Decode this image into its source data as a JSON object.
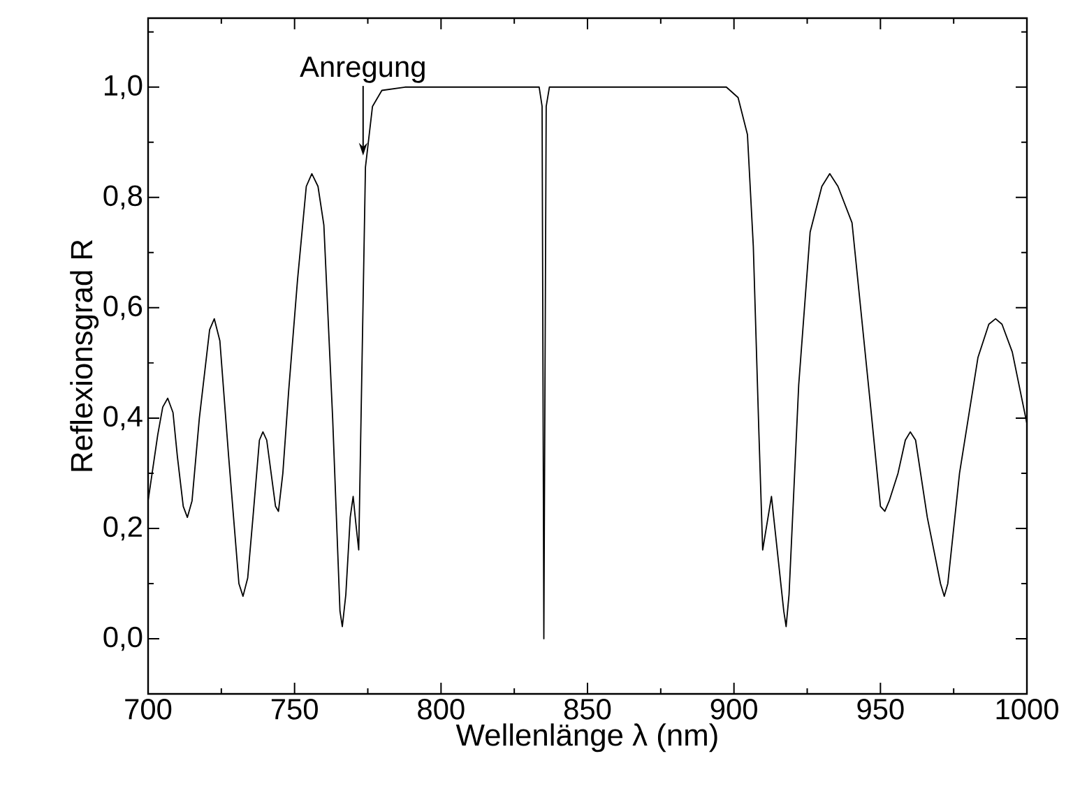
{
  "chart_data": {
    "type": "line",
    "xlabel": "Wellenlänge λ (nm)",
    "ylabel": "Reflexionsgrad R",
    "xlim": [
      700,
      1000
    ],
    "ylim": [
      -0.1,
      1.125
    ],
    "xticks": [
      700,
      {
        "value": 725,
        "label": null
      },
      750,
      {
        "value": 775,
        "label": null
      },
      800,
      {
        "value": 825,
        "label": null
      },
      850,
      {
        "value": 875,
        "label": null
      },
      900,
      {
        "value": 925,
        "label": null
      },
      950,
      {
        "value": 975,
        "label": null
      },
      1000
    ],
    "yticks": [
      {
        "value": -0.1,
        "label": null
      },
      {
        "value": 0.0,
        "label": "0,0"
      },
      {
        "value": 0.1,
        "label": null
      },
      {
        "value": 0.2,
        "label": "0,2"
      },
      {
        "value": 0.3,
        "label": null
      },
      {
        "value": 0.4,
        "label": "0,4"
      },
      {
        "value": 0.5,
        "label": null
      },
      {
        "value": 0.6,
        "label": "0,6"
      },
      {
        "value": 0.7,
        "label": null
      },
      {
        "value": 0.8,
        "label": "0,8"
      },
      {
        "value": 0.9,
        "label": null
      },
      {
        "value": 1.0,
        "label": "1,0"
      },
      {
        "value": 1.1,
        "label": null
      }
    ],
    "series": [
      {
        "color": "#000000",
        "x": [
          700,
          703.3,
          705,
          706.7,
          708.5,
          710,
          712,
          713.4,
          715,
          717.5,
          721,
          722.6,
          724.5,
          727.5,
          731,
          732.4,
          734,
          735.8,
          738,
          739.2,
          740.5,
          742,
          743.5,
          744.5,
          746,
          748,
          751,
          754,
          755.9,
          758,
          760,
          763,
          765.5,
          766.3,
          767.5,
          769,
          770.0,
          770.9,
          771.9,
          774.2,
          776.6,
          779.8,
          787.7,
          833.5,
          834.5,
          835.1,
          835.9,
          837.0,
          897.4,
          901.4,
          904.6,
          906.6,
          908.5,
          909.8,
          912.8,
          917,
          917.8,
          918.8,
          922.1,
          926.0,
          930,
          932.7,
          935.5,
          940.3,
          946.7,
          950,
          951.5,
          953,
          956,
          958.5,
          960.2,
          962,
          966,
          970.5,
          971.8,
          973,
          977,
          983.3,
          987,
          989.3,
          991.5,
          995,
          1000
        ],
        "values": [
          0.25,
          0.37,
          0.42,
          0.436,
          0.41,
          0.33,
          0.24,
          0.22,
          0.25,
          0.4,
          0.56,
          0.58,
          0.54,
          0.33,
          0.1,
          0.077,
          0.11,
          0.22,
          0.36,
          0.375,
          0.36,
          0.3,
          0.24,
          0.231,
          0.3,
          0.45,
          0.65,
          0.82,
          0.843,
          0.82,
          0.75,
          0.4,
          0.05,
          0.022,
          0.08,
          0.22,
          0.258,
          0.21,
          0.161,
          0.855,
          0.965,
          0.994,
          1.0,
          1.0,
          0.965,
          0.0,
          0.965,
          1.0,
          1.0,
          0.981,
          0.914,
          0.712,
          0.375,
          0.161,
          0.258,
          0.05,
          0.022,
          0.08,
          0.46,
          0.737,
          0.82,
          0.843,
          0.82,
          0.754,
          0.418,
          0.24,
          0.231,
          0.25,
          0.3,
          0.36,
          0.375,
          0.36,
          0.22,
          0.1,
          0.077,
          0.1,
          0.3,
          0.51,
          0.57,
          0.58,
          0.57,
          0.52,
          0.39
        ]
      }
    ],
    "annotations": [
      {
        "text": "Anregung",
        "x": 773.4,
        "y": 0.876
      }
    ]
  }
}
